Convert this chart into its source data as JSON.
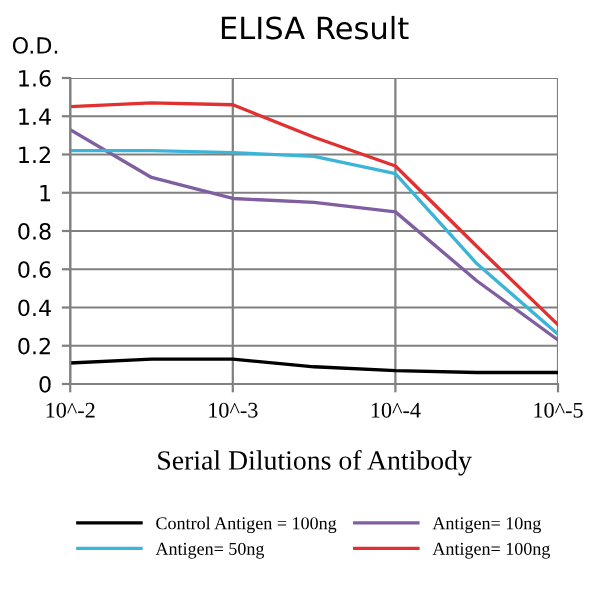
{
  "chart_data": {
    "type": "line",
    "title": "ELISA Result",
    "ylabel": "O.D.",
    "xlabel": "Serial Dilutions of Antibody",
    "categories": [
      "10^-2",
      null,
      "10^-3",
      null,
      "10^-4",
      null,
      "10^-5"
    ],
    "ylim": [
      0,
      1.6
    ],
    "yticks": [
      0,
      0.2,
      0.4,
      0.6,
      0.8,
      1,
      1.2,
      1.4,
      1.6
    ],
    "grid": true,
    "legend": "bottom",
    "marker": "none",
    "line_style": "solid",
    "series": [
      {
        "name": "Control Antigen = 100ng",
        "color": "#000000",
        "values": [
          0.11,
          0.13,
          0.13,
          0.09,
          0.07,
          0.06,
          0.06
        ]
      },
      {
        "name": "Antigen= 10ng",
        "color": "#7f5fa0",
        "values": [
          1.33,
          1.08,
          0.97,
          0.95,
          0.9,
          0.54,
          0.23
        ]
      },
      {
        "name": "Antigen= 50ng",
        "color": "#3cb4d8",
        "values": [
          1.22,
          1.22,
          1.21,
          1.19,
          1.1,
          0.63,
          0.26
        ]
      },
      {
        "name": "Antigen= 100ng",
        "color": "#e03030",
        "values": [
          1.45,
          1.47,
          1.46,
          1.29,
          1.14,
          0.72,
          0.31
        ]
      }
    ]
  }
}
